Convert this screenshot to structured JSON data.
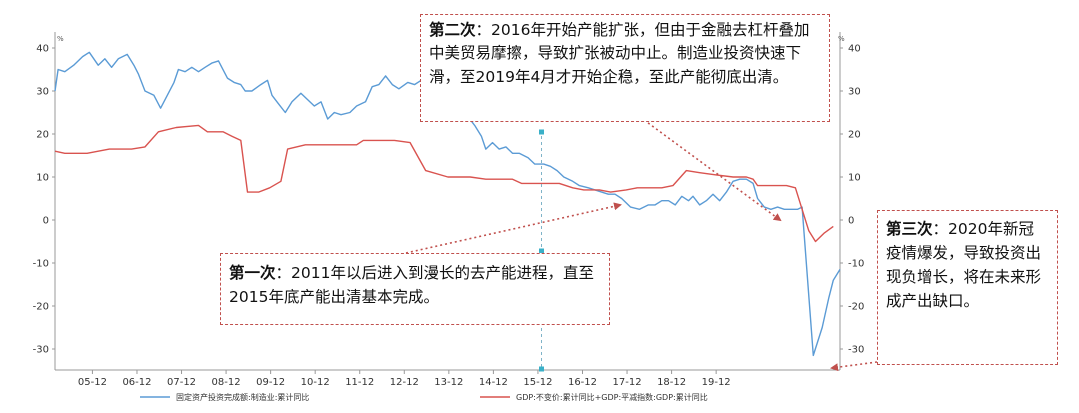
{
  "chart_data": {
    "type": "line",
    "unit_left": "%",
    "unit_right": "%",
    "ylim": [
      -35,
      42
    ],
    "yticks": [
      40,
      30,
      20,
      10,
      0,
      -10,
      -20,
      -30
    ],
    "xticks": [
      "05-12",
      "06-12",
      "07-12",
      "08-12",
      "09-12",
      "10-12",
      "11-12",
      "12-12",
      "13-12",
      "14-12",
      "15-12",
      "16-12",
      "17-12",
      "18-12",
      "19-12"
    ],
    "x_start": "2005-02",
    "grid": false,
    "legend_position": "bottom",
    "series": [
      {
        "name": "固定资产投资完成额:制造业:累计同比",
        "color": "#5b9bd5",
        "axis": "left",
        "values": [
          [
            2005.08,
            30.0
          ],
          [
            2005.15,
            35.0
          ],
          [
            2005.3,
            34.5
          ],
          [
            2005.5,
            36.0
          ],
          [
            2005.7,
            38.0
          ],
          [
            2005.85,
            39.0
          ],
          [
            2006.05,
            36.0
          ],
          [
            2006.2,
            37.5
          ],
          [
            2006.35,
            35.5
          ],
          [
            2006.5,
            37.5
          ],
          [
            2006.7,
            38.5
          ],
          [
            2006.85,
            36.0
          ],
          [
            2006.95,
            34.0
          ],
          [
            2007.1,
            30.0
          ],
          [
            2007.3,
            29.0
          ],
          [
            2007.45,
            26.0
          ],
          [
            2007.6,
            29.0
          ],
          [
            2007.75,
            32.0
          ],
          [
            2007.85,
            35.0
          ],
          [
            2008.0,
            34.5
          ],
          [
            2008.15,
            35.5
          ],
          [
            2008.3,
            34.5
          ],
          [
            2008.45,
            35.5
          ],
          [
            2008.6,
            36.5
          ],
          [
            2008.75,
            37.0
          ],
          [
            2008.95,
            33.0
          ],
          [
            2009.1,
            32.0
          ],
          [
            2009.25,
            31.5
          ],
          [
            2009.35,
            30.0
          ],
          [
            2009.5,
            30.0
          ],
          [
            2009.7,
            31.5
          ],
          [
            2009.85,
            32.5
          ],
          [
            2009.95,
            29.0
          ],
          [
            2010.1,
            27.0
          ],
          [
            2010.25,
            25.0
          ],
          [
            2010.4,
            27.5
          ],
          [
            2010.6,
            29.5
          ],
          [
            2010.75,
            28.0
          ],
          [
            2010.9,
            26.5
          ],
          [
            2011.05,
            27.5
          ],
          [
            2011.2,
            23.5
          ],
          [
            2011.35,
            25.0
          ],
          [
            2011.5,
            24.5
          ],
          [
            2011.7,
            25.0
          ],
          [
            2011.85,
            26.5
          ],
          [
            2012.05,
            27.5
          ],
          [
            2012.2,
            31.0
          ],
          [
            2012.35,
            31.5
          ],
          [
            2012.5,
            33.5
          ],
          [
            2012.65,
            31.5
          ],
          [
            2012.8,
            30.5
          ],
          [
            2013.0,
            32.0
          ],
          [
            2013.15,
            31.5
          ],
          [
            2013.3,
            32.5
          ],
          [
            2013.4,
            31.0
          ],
          [
            2013.5,
            31.5
          ],
          [
            2013.6,
            31.5
          ],
          [
            2013.7,
            25.0
          ],
          [
            2013.85,
            24.5
          ],
          [
            2014.05,
            24.5
          ],
          [
            2014.2,
            25.0
          ],
          [
            2014.35,
            24.0
          ],
          [
            2014.5,
            22.0
          ],
          [
            2014.65,
            19.5
          ],
          [
            2014.75,
            16.5
          ],
          [
            2014.9,
            18.0
          ],
          [
            2015.05,
            16.5
          ],
          [
            2015.2,
            17.0
          ],
          [
            2015.35,
            15.5
          ],
          [
            2015.5,
            15.5
          ],
          [
            2015.7,
            14.5
          ],
          [
            2015.85,
            13.0
          ],
          [
            2016.05,
            13.0
          ],
          [
            2016.2,
            12.5
          ],
          [
            2016.35,
            11.5
          ],
          [
            2016.5,
            10.0
          ],
          [
            2016.7,
            9.0
          ],
          [
            2016.85,
            8.0
          ],
          [
            2017.05,
            7.5
          ],
          [
            2017.2,
            7.0
          ],
          [
            2017.35,
            6.5
          ],
          [
            2017.5,
            6.0
          ],
          [
            2017.65,
            6.0
          ],
          [
            2017.8,
            5.0
          ],
          [
            2018.0,
            3.0
          ],
          [
            2018.2,
            2.5
          ],
          [
            2018.4,
            3.5
          ],
          [
            2018.55,
            3.5
          ],
          [
            2018.7,
            4.5
          ],
          [
            2018.85,
            4.5
          ],
          [
            2019.0,
            3.5
          ],
          [
            2019.15,
            5.5
          ],
          [
            2019.3,
            4.5
          ],
          [
            2019.4,
            5.5
          ],
          [
            2019.55,
            3.5
          ],
          [
            2019.7,
            4.5
          ],
          [
            2019.85,
            6.0
          ],
          [
            2020.0,
            4.5
          ],
          [
            2020.15,
            6.5
          ],
          [
            2020.3,
            9.0
          ],
          [
            2020.45,
            9.5
          ],
          [
            2020.6,
            9.5
          ],
          [
            2020.75,
            8.5
          ],
          [
            2020.85,
            5.0
          ],
          [
            2021.0,
            3.0
          ],
          [
            2021.15,
            2.5
          ],
          [
            2021.3,
            3.0
          ],
          [
            2021.45,
            2.5
          ],
          [
            2021.6,
            2.5
          ],
          [
            2021.75,
            2.5
          ],
          [
            2021.85,
            3.0
          ],
          [
            2022.1,
            -31.5
          ],
          [
            2022.3,
            -25.0
          ],
          [
            2022.45,
            -18.0
          ],
          [
            2022.55,
            -14.0
          ],
          [
            2022.7,
            -11.5
          ]
        ]
      },
      {
        "name": "GDP:不变价:累计同比+GDP:平减指数:GDP:累计同比",
        "color": "#d9534f",
        "axis": "right",
        "values": [
          [
            2005.08,
            16.0
          ],
          [
            2005.3,
            15.5
          ],
          [
            2005.8,
            15.5
          ],
          [
            2006.3,
            16.5
          ],
          [
            2006.8,
            16.5
          ],
          [
            2007.1,
            17.0
          ],
          [
            2007.4,
            20.5
          ],
          [
            2007.8,
            21.5
          ],
          [
            2008.3,
            22.0
          ],
          [
            2008.5,
            20.5
          ],
          [
            2008.85,
            20.5
          ],
          [
            2009.05,
            19.5
          ],
          [
            2009.25,
            18.5
          ],
          [
            2009.4,
            6.5
          ],
          [
            2009.65,
            6.5
          ],
          [
            2009.9,
            7.5
          ],
          [
            2010.15,
            9.0
          ],
          [
            2010.3,
            16.5
          ],
          [
            2010.7,
            17.5
          ],
          [
            2011.05,
            17.5
          ],
          [
            2011.4,
            17.5
          ],
          [
            2011.85,
            17.5
          ],
          [
            2012.0,
            18.5
          ],
          [
            2012.35,
            18.5
          ],
          [
            2012.7,
            18.5
          ],
          [
            2013.05,
            18.0
          ],
          [
            2013.4,
            11.5
          ],
          [
            2013.9,
            10.0
          ],
          [
            2014.4,
            10.0
          ],
          [
            2014.75,
            9.5
          ],
          [
            2015.05,
            9.5
          ],
          [
            2015.35,
            9.5
          ],
          [
            2015.55,
            8.5
          ],
          [
            2015.9,
            8.5
          ],
          [
            2016.1,
            8.5
          ],
          [
            2016.4,
            8.5
          ],
          [
            2016.7,
            7.5
          ],
          [
            2016.95,
            7.0
          ],
          [
            2017.3,
            7.0
          ],
          [
            2017.55,
            6.5
          ],
          [
            2017.9,
            7.0
          ],
          [
            2018.15,
            7.5
          ],
          [
            2018.4,
            7.5
          ],
          [
            2018.7,
            7.5
          ],
          [
            2018.95,
            8.0
          ],
          [
            2019.25,
            11.5
          ],
          [
            2019.55,
            11.0
          ],
          [
            2019.9,
            10.5
          ],
          [
            2020.3,
            10.0
          ],
          [
            2020.6,
            10.0
          ],
          [
            2020.75,
            9.5
          ],
          [
            2020.85,
            8.0
          ],
          [
            2021.1,
            8.0
          ],
          [
            2021.5,
            8.0
          ],
          [
            2021.7,
            7.5
          ],
          [
            2022.0,
            -2.5
          ],
          [
            2022.15,
            -5.0
          ],
          [
            2022.35,
            -3.0
          ],
          [
            2022.55,
            -1.5
          ]
        ]
      }
    ]
  },
  "annotations": [
    {
      "label": "第一次",
      "text": "：2011年以后进入到漫长的去产能进程，直至2015年底产能出清基本完成。"
    },
    {
      "label": "第二次",
      "text": "：2016年开始产能扩张，但由于金融去杠杆叠加中美贸易摩擦，导致扩张被动中止。制造业投资快速下滑，至2019年4月才开始企稳，至此产能彻底出清。"
    },
    {
      "label": "第三次",
      "text": "：2020年新冠疫情爆发，导致投资出现负增长，将在未来形成产出缺口。"
    }
  ]
}
